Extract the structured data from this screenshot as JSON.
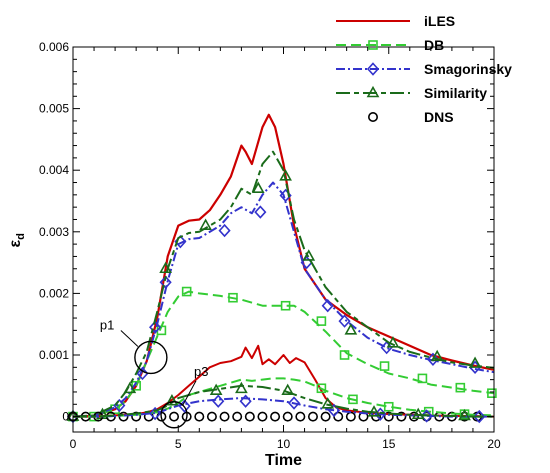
{
  "chart_data": {
    "type": "line",
    "xlabel": "Time",
    "ylabel_main": "ε",
    "ylabel_sub": "d",
    "xlim": [
      0,
      20
    ],
    "ylim": [
      -0.00025,
      0.006
    ],
    "x_ticks": [
      0,
      5,
      10,
      15,
      20
    ],
    "x_tick_labels": [
      "0",
      "5",
      "10",
      "15",
      "20"
    ],
    "y_ticks": [
      0,
      0.001,
      0.002,
      0.003,
      0.004,
      0.005,
      0.006
    ],
    "y_tick_labels": [
      "0",
      "0.001",
      "0.002",
      "0.003",
      "0.004",
      "0.005",
      "0.006"
    ],
    "grid": false,
    "legend_position": "top-right",
    "annotations": [
      {
        "label": "p1",
        "x": 3.7,
        "y": 0.00096
      },
      {
        "label": "p3",
        "x": 4.8,
        "y": 3e-05
      }
    ],
    "series": [
      {
        "name": "iLES",
        "color": "#cc0000",
        "dash": "solid",
        "marker": "none",
        "group": "upper",
        "x": [
          0,
          1,
          2,
          2.5,
          3,
          3.5,
          4,
          4.5,
          5,
          5.5,
          6,
          6.5,
          7,
          7.5,
          8,
          8.2,
          8.5,
          9,
          9.3,
          9.6,
          10,
          10.5,
          11,
          12,
          13,
          14,
          15,
          16,
          17,
          18,
          19,
          20
        ],
        "y": [
          0,
          1e-05,
          0.00012,
          0.00025,
          0.0005,
          0.0009,
          0.0016,
          0.0026,
          0.0031,
          0.00318,
          0.0032,
          0.00335,
          0.0036,
          0.0039,
          0.0044,
          0.0043,
          0.0041,
          0.0047,
          0.0049,
          0.0047,
          0.0041,
          0.0031,
          0.0024,
          0.0019,
          0.00165,
          0.00145,
          0.0013,
          0.00115,
          0.001,
          0.00091,
          0.00083,
          0.00076
        ]
      },
      {
        "name": "DB",
        "color": "#33cc33",
        "dash": "10,5",
        "marker": "square",
        "group": "upper",
        "x": [
          0,
          1,
          2,
          2.5,
          3,
          3.5,
          4,
          4.5,
          5,
          5.5,
          6,
          7,
          8,
          9,
          10,
          10.5,
          11,
          12,
          13,
          14,
          15,
          16,
          17,
          18,
          19,
          20
        ],
        "y": [
          0,
          1e-05,
          0.00012,
          0.00025,
          0.0005,
          0.0009,
          0.0013,
          0.0017,
          0.00195,
          0.00203,
          0.002,
          0.00196,
          0.0019,
          0.0018,
          0.0018,
          0.0018,
          0.0017,
          0.00138,
          0.00103,
          0.00085,
          0.0007,
          0.00062,
          0.00052,
          0.00047,
          0.00042,
          0.00038
        ],
        "markers_x": [
          0,
          1,
          2,
          3,
          4.2,
          5.4,
          7.6,
          10.1,
          11.8,
          12.9,
          14.8,
          16.6,
          18.4,
          19.9
        ],
        "markers_y": [
          0,
          0,
          0.00012,
          0.0005,
          0.0014,
          0.00203,
          0.00193,
          0.0018,
          0.00155,
          0.001,
          0.00082,
          0.00062,
          0.00047,
          0.00038
        ]
      },
      {
        "name": "Smagorinsky",
        "color": "#3333cc",
        "dash": "9,3,2,3",
        "marker": "diamond",
        "group": "upper",
        "x": [
          0,
          1,
          2,
          2.5,
          3,
          3.5,
          4,
          4.5,
          5,
          5.5,
          6,
          7,
          7.5,
          8,
          8.5,
          9,
          9.5,
          10,
          10.5,
          11,
          12,
          13,
          14,
          15,
          16,
          17,
          18,
          19,
          20
        ],
        "y": [
          0,
          1e-05,
          0.00015,
          0.0003,
          0.00055,
          0.0009,
          0.0015,
          0.0022,
          0.0028,
          0.00288,
          0.0029,
          0.0031,
          0.0033,
          0.0034,
          0.0033,
          0.0036,
          0.0038,
          0.0036,
          0.003,
          0.0024,
          0.0019,
          0.00155,
          0.00128,
          0.0011,
          0.001,
          0.00092,
          0.00085,
          0.00078,
          0.00072
        ],
        "markers_x": [
          0,
          2.2,
          3.3,
          3.9,
          4.4,
          5.1,
          7.2,
          8.9,
          10.1,
          11.1,
          12.1,
          12.9,
          14.9,
          17.1,
          19.1
        ],
        "markers_y": [
          0,
          0.00018,
          0.0007,
          0.00145,
          0.00218,
          0.00284,
          0.00302,
          0.00332,
          0.00359,
          0.0025,
          0.0018,
          0.00155,
          0.00112,
          0.00093,
          0.0008
        ]
      },
      {
        "name": "Similarity",
        "color": "#1a6b1a",
        "dash": "14,4,5,4",
        "marker": "triangle",
        "group": "upper",
        "x": [
          0,
          1,
          2,
          2.5,
          3,
          3.5,
          4,
          4.5,
          5,
          5.5,
          6,
          6.5,
          7,
          7.5,
          8,
          8.5,
          9,
          9.5,
          10,
          10.5,
          11,
          11.5,
          12,
          13,
          14,
          15,
          16,
          17,
          18,
          19,
          20
        ],
        "y": [
          0,
          2e-05,
          0.00018,
          0.0004,
          0.0007,
          0.00105,
          0.0017,
          0.0024,
          0.0029,
          0.00298,
          0.003,
          0.0031,
          0.0032,
          0.0034,
          0.0037,
          0.0036,
          0.0041,
          0.0043,
          0.004,
          0.0032,
          0.0027,
          0.0024,
          0.0021,
          0.0017,
          0.00145,
          0.0012,
          0.00105,
          0.00096,
          0.00088,
          0.00083,
          0.00079
        ],
        "markers_x": [
          0,
          1.4,
          2.7,
          4.4,
          6.3,
          8.8,
          10.1,
          11.2,
          13.2,
          15.2,
          17.3,
          19.1
        ],
        "markers_y": [
          0,
          3e-05,
          0.00045,
          0.0024,
          0.0031,
          0.0037,
          0.0039,
          0.0026,
          0.0014,
          0.00119,
          0.00097,
          0.00086
        ]
      },
      {
        "name": "DNS",
        "color": "#000000",
        "dash": "none",
        "marker": "circle",
        "group": "upper",
        "x": [],
        "y": [],
        "markers_x": [
          0,
          0.6,
          1.2,
          1.8,
          2.4,
          3.0,
          3.6,
          4.2,
          4.8,
          5.4,
          6.0,
          6.6,
          7.2,
          7.8,
          8.4,
          9.0,
          9.6,
          10.2,
          10.8,
          11.4,
          12.0,
          12.6,
          13.2,
          13.8,
          14.4,
          15.0,
          15.6,
          16.2,
          16.8,
          17.4,
          18.0,
          18.6,
          19.2
        ],
        "markers_y": [
          0,
          0,
          0,
          0,
          0,
          0,
          0,
          0,
          0,
          0,
          0,
          0,
          0,
          0,
          0,
          0,
          0,
          0,
          0,
          0,
          0,
          0,
          0,
          0,
          0,
          0,
          0,
          0,
          0,
          0,
          0,
          0,
          0
        ]
      },
      {
        "name": "",
        "color": "#cc0000",
        "dash": "solid",
        "marker": "none",
        "group": "lower",
        "x": [
          0,
          1,
          2,
          3,
          3.5,
          4,
          4.5,
          5,
          5.5,
          6,
          6.5,
          7,
          7.5,
          8,
          8.2,
          8.5,
          8.8,
          9,
          9.3,
          9.6,
          10,
          10.3,
          10.6,
          11,
          11.5,
          12,
          12.5,
          13,
          14,
          15,
          16,
          17,
          18,
          19,
          20
        ],
        "y": [
          0,
          0,
          2e-05,
          4e-05,
          7e-05,
          0.00012,
          0.00022,
          0.00035,
          0.0005,
          0.00065,
          0.0008,
          0.00087,
          0.0009,
          0.00097,
          0.00112,
          0.00095,
          0.00115,
          0.00085,
          0.00093,
          0.00085,
          0.001,
          0.00087,
          0.00095,
          0.00088,
          0.0006,
          0.0003,
          0.00015,
          0.0001,
          6e-05,
          4e-05,
          3e-05,
          2e-05,
          1e-05,
          1e-05,
          0
        ]
      },
      {
        "name": "",
        "color": "#33cc33",
        "dash": "10,5",
        "marker": "square",
        "group": "lower",
        "x": [
          0,
          1,
          2,
          3,
          4,
          4.5,
          5,
          5.5,
          6,
          6.5,
          7,
          7.5,
          8,
          8.5,
          9,
          9.5,
          10,
          10.5,
          11,
          11.5,
          12,
          13,
          14,
          15,
          16,
          17,
          18,
          19,
          20
        ],
        "y": [
          0,
          0,
          1e-05,
          3e-05,
          7e-05,
          0.00013,
          0.00022,
          0.00035,
          0.0004,
          0.00045,
          0.0005,
          0.00055,
          0.0006,
          0.00058,
          0.0006,
          0.00062,
          0.00062,
          0.0006,
          0.00057,
          0.0005,
          0.00042,
          0.0003,
          0.00022,
          0.00016,
          0.00011,
          8e-05,
          5e-05,
          3e-05,
          2e-05
        ],
        "markers_x": [
          11.8,
          13.3,
          15.0,
          16.9,
          18.6
        ],
        "markers_y": [
          0.00046,
          0.00028,
          0.00016,
          8e-05,
          4e-05
        ]
      },
      {
        "name": "",
        "color": "#3333cc",
        "dash": "9,3,2,3",
        "marker": "diamond",
        "group": "lower",
        "x": [
          0,
          1,
          2,
          3,
          4,
          4.5,
          5,
          6,
          7,
          8,
          9,
          10,
          11,
          12,
          13,
          14,
          15,
          16,
          17,
          18,
          19,
          20
        ],
        "y": [
          0,
          0,
          1e-05,
          3e-05,
          6e-05,
          0.00012,
          0.00018,
          0.00025,
          0.00028,
          0.0003,
          0.00028,
          0.00025,
          0.00018,
          0.00012,
          8e-05,
          5e-05,
          3e-05,
          2e-05,
          1e-05,
          0,
          0,
          0
        ],
        "markers_x": [
          3.9,
          5.3,
          6.9,
          8.2,
          10.5,
          12.4,
          14.6,
          16.8,
          19.3
        ],
        "markers_y": [
          5e-05,
          0.00017,
          0.00025,
          0.00025,
          0.00022,
          0.0001,
          4e-05,
          1e-05,
          0
        ]
      },
      {
        "name": "",
        "color": "#1a6b1a",
        "dash": "14,4,5,4",
        "marker": "triangle",
        "group": "lower",
        "x": [
          0,
          1,
          2,
          3,
          4,
          4.5,
          5,
          6,
          7,
          8,
          9,
          10,
          11,
          12,
          13,
          14,
          15,
          16,
          17,
          18,
          19,
          20
        ],
        "y": [
          0,
          0,
          2e-05,
          5e-05,
          0.0001,
          0.00018,
          0.0003,
          0.0004,
          0.00045,
          0.0005,
          0.00048,
          0.00042,
          0.0003,
          0.0002,
          0.00013,
          8e-05,
          5e-05,
          3e-05,
          2e-05,
          1e-05,
          0,
          0
        ],
        "markers_x": [
          4.7,
          6.8,
          8.0,
          10.2,
          12.1,
          14.3,
          16.4,
          18.6
        ],
        "markers_y": [
          0.00025,
          0.00042,
          0.00045,
          0.00042,
          0.0002,
          7e-05,
          3e-05,
          1e-05
        ]
      }
    ]
  }
}
